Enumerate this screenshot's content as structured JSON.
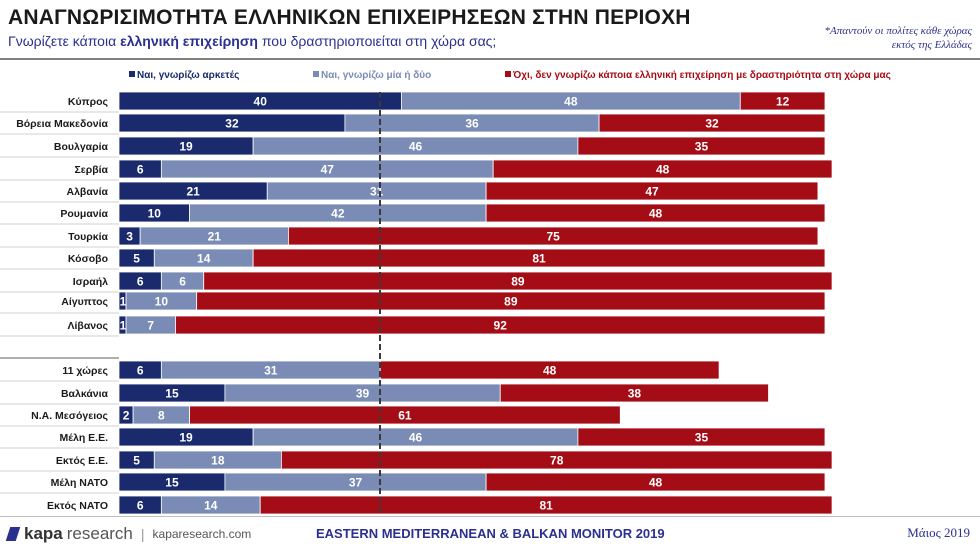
{
  "header": {
    "title": "ΑΝΑΓΝΩΡΙΣΙΜΟΤΗΤΑ ΕΛΛΗΝΙΚΩΝ ΕΠΙΧΕΙΡΗΣΕΩΝ ΣΤΗΝ ΠΕΡΙΟΧΗ",
    "subtitle_pre": "Γνωρίζετε κάποια ",
    "subtitle_bold": "ελληνική επιχείρηση",
    "subtitle_post": " που δραστηριοποιείται στη χώρα σας;",
    "note_line1": "*Απαντούν οι πολίτες κάθε χώρας",
    "note_line2": "εκτός της Ελλάδας"
  },
  "footer": {
    "logo_bold": "kapa",
    "logo_light": "research",
    "url": "kaparesearch.com",
    "center": "EASTERN MEDITERRANEAN & BALKAN MONITOR 2019",
    "date": "Μάιος 2019"
  },
  "colors": {
    "dark_blue": "#1a2a6c",
    "light_blue": "#7a8bb5",
    "red": "#a50d16"
  },
  "chart_data": {
    "type": "bar",
    "orientation": "horizontal",
    "stacked": true,
    "series": [
      {
        "name": "Ναι, γνωρίζω αρκετές",
        "color": "#1a2a6c",
        "values": [
          40,
          32,
          19,
          6,
          21,
          10,
          3,
          5,
          6,
          1,
          1,
          6,
          15,
          2,
          19,
          5,
          15,
          6
        ]
      },
      {
        "name": "Ναι, γνωρίζω μία ή δύο",
        "color": "#7a8bb5",
        "values": [
          48,
          36,
          46,
          47,
          31,
          42,
          21,
          14,
          6,
          10,
          7,
          31,
          39,
          8,
          46,
          18,
          37,
          14
        ]
      },
      {
        "name": "Όχι, δεν γνωρίζω κάποια ελληνική επιχείρηση με δραστηριότητα στη χώρα μας",
        "color": "#a50d16",
        "values": [
          12,
          32,
          35,
          48,
          47,
          48,
          75,
          81,
          89,
          89,
          92,
          48,
          38,
          61,
          35,
          78,
          48,
          81
        ]
      }
    ],
    "categories": [
      "Κύπρος",
      "Βόρεια Μακεδονία",
      "Βουλγαρία",
      "Σερβία",
      "Αλβανία",
      "Ρουμανία",
      "Τουρκία",
      "Κόσοβο",
      "Ισραήλ",
      "Αίγυπτος",
      "Λίβανος",
      "11 χώρες",
      "Βαλκάνια",
      "Ν.Α. Μεσόγειος",
      "Μέλη Ε.Ε.",
      "Εκτός Ε.Ε.",
      "Μέλη ΝΑΤΟ",
      "Εκτός ΝΑΤΟ"
    ],
    "legend_position": "top"
  }
}
